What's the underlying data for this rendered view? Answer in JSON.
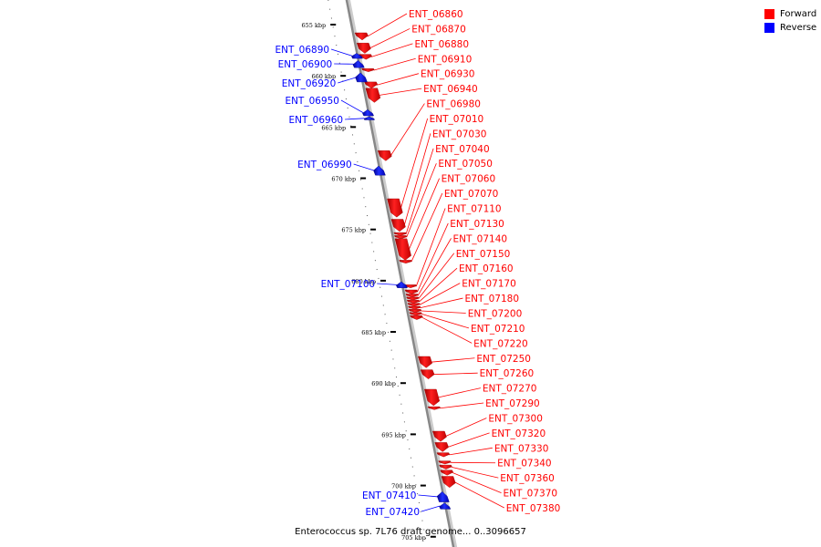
{
  "caption": "Enterococcus sp. 7L76 draft genome... 0..3096657",
  "legend": [
    {
      "label": "Forward",
      "color": "#ff0000"
    },
    {
      "label": "Reverse",
      "color": "#0000ff"
    }
  ],
  "colors": {
    "forward": "#ff0000",
    "reverse": "#0000ff",
    "axis": "#888888",
    "tick": "#000000"
  },
  "ticks": [
    {
      "label": "655 kbp",
      "kbp": 655
    },
    {
      "label": "660 kbp",
      "kbp": 660
    },
    {
      "label": "665 kbp",
      "kbp": 665
    },
    {
      "label": "670 kbp",
      "kbp": 670
    },
    {
      "label": "675 kbp",
      "kbp": 675
    },
    {
      "label": "680 kbp",
      "kbp": 680
    },
    {
      "label": "685 kbp",
      "kbp": 685
    },
    {
      "label": "690 kbp",
      "kbp": 690
    },
    {
      "label": "695 kbp",
      "kbp": 695
    },
    {
      "label": "700 kbp",
      "kbp": 700
    },
    {
      "label": "705 kbp",
      "kbp": 705
    }
  ],
  "genes": [
    {
      "label": "ENT_06860",
      "strand": "forward",
      "start": 655.8,
      "end": 656.5
    },
    {
      "label": "ENT_06870",
      "strand": "forward",
      "start": 656.8,
      "end": 657.8
    },
    {
      "label": "ENT_06880",
      "strand": "forward",
      "start": 657.9,
      "end": 658.4
    },
    {
      "label": "ENT_06890",
      "strand": "reverse",
      "start": 657.8,
      "end": 658.3
    },
    {
      "label": "ENT_06900",
      "strand": "reverse",
      "start": 658.5,
      "end": 659.2
    },
    {
      "label": "ENT_06910",
      "strand": "forward",
      "start": 659.3,
      "end": 659.6
    },
    {
      "label": "ENT_06920",
      "strand": "reverse",
      "start": 659.7,
      "end": 660.6
    },
    {
      "label": "ENT_06930",
      "strand": "forward",
      "start": 660.6,
      "end": 661.2
    },
    {
      "label": "ENT_06940",
      "strand": "forward",
      "start": 661.2,
      "end": 662.6
    },
    {
      "label": "ENT_06950",
      "strand": "reverse",
      "start": 663.3,
      "end": 663.9
    },
    {
      "label": "ENT_06960",
      "strand": "reverse",
      "start": 664.0,
      "end": 664.3
    },
    {
      "label": "ENT_06980",
      "strand": "forward",
      "start": 667.3,
      "end": 668.3
    },
    {
      "label": "ENT_06990",
      "strand": "reverse",
      "start": 668.8,
      "end": 669.7
    },
    {
      "label": "ENT_07010",
      "strand": "forward",
      "start": 672.0,
      "end": 673.8
    },
    {
      "label": "ENT_07030",
      "strand": "forward",
      "start": 674.0,
      "end": 675.2
    },
    {
      "label": "ENT_07040",
      "strand": "forward",
      "start": 675.3,
      "end": 675.6
    },
    {
      "label": "ENT_07050",
      "strand": "forward",
      "start": 675.6,
      "end": 675.9
    },
    {
      "label": "ENT_07060",
      "strand": "forward",
      "start": 675.9,
      "end": 678.0
    },
    {
      "label": "ENT_07070",
      "strand": "forward",
      "start": 678.0,
      "end": 678.3
    },
    {
      "label": "ENT_07100",
      "strand": "reverse",
      "start": 680.1,
      "end": 680.7
    },
    {
      "label": "ENT_07110",
      "strand": "forward",
      "start": 680.4,
      "end": 680.7
    },
    {
      "label": "ENT_07130",
      "strand": "forward",
      "start": 680.9,
      "end": 681.3
    },
    {
      "label": "ENT_07140",
      "strand": "forward",
      "start": 681.3,
      "end": 681.6
    },
    {
      "label": "ENT_07150",
      "strand": "forward",
      "start": 681.6,
      "end": 681.9
    },
    {
      "label": "ENT_07160",
      "strand": "forward",
      "start": 681.9,
      "end": 682.2
    },
    {
      "label": "ENT_07170",
      "strand": "forward",
      "start": 682.2,
      "end": 682.5
    },
    {
      "label": "ENT_07180",
      "strand": "forward",
      "start": 682.5,
      "end": 682.8
    },
    {
      "label": "ENT_07200",
      "strand": "forward",
      "start": 682.8,
      "end": 683.1
    },
    {
      "label": "ENT_07210",
      "strand": "forward",
      "start": 683.1,
      "end": 683.4
    },
    {
      "label": "ENT_07220",
      "strand": "forward",
      "start": 683.4,
      "end": 683.8
    },
    {
      "label": "ENT_07250",
      "strand": "forward",
      "start": 687.4,
      "end": 688.5
    },
    {
      "label": "ENT_07260",
      "strand": "forward",
      "start": 688.7,
      "end": 689.6
    },
    {
      "label": "ENT_07270",
      "strand": "forward",
      "start": 690.6,
      "end": 692.2
    },
    {
      "label": "ENT_07290",
      "strand": "forward",
      "start": 692.3,
      "end": 692.6
    },
    {
      "label": "ENT_07300",
      "strand": "forward",
      "start": 694.7,
      "end": 695.7
    },
    {
      "label": "ENT_07320",
      "strand": "forward",
      "start": 695.8,
      "end": 696.7
    },
    {
      "label": "ENT_07330",
      "strand": "forward",
      "start": 696.8,
      "end": 697.2
    },
    {
      "label": "ENT_07340",
      "strand": "forward",
      "start": 697.6,
      "end": 697.9
    },
    {
      "label": "ENT_07360",
      "strand": "forward",
      "start": 698.0,
      "end": 698.4
    },
    {
      "label": "ENT_07370",
      "strand": "forward",
      "start": 698.5,
      "end": 699.0
    },
    {
      "label": "ENT_07380",
      "strand": "forward",
      "start": 699.1,
      "end": 700.2
    },
    {
      "label": "ENT_07410",
      "strand": "reverse",
      "start": 700.6,
      "end": 701.6
    },
    {
      "label": "ENT_07420",
      "strand": "reverse",
      "start": 701.7,
      "end": 702.3
    }
  ]
}
